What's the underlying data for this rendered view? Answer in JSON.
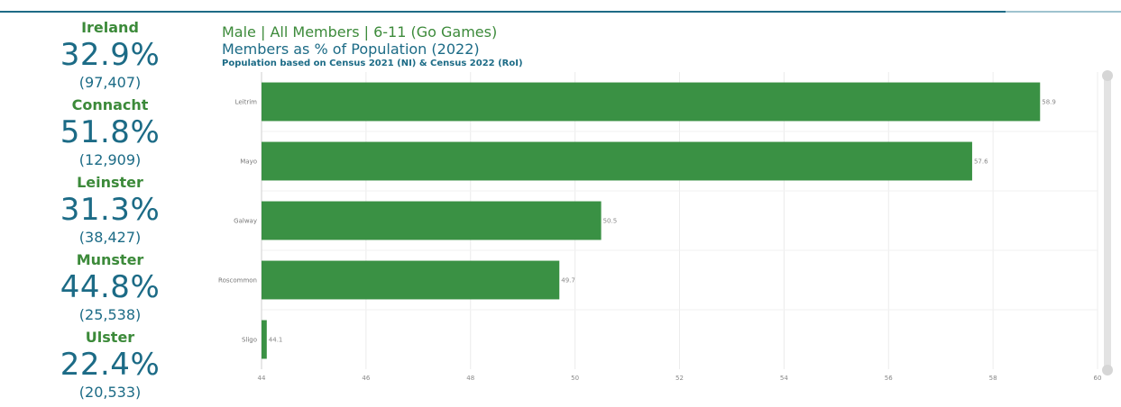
{
  "header": {
    "line1": "Male | All Members | 6-11 (Go Games)",
    "line2": "Members as % of Population (2022)",
    "line3": "Population based on Census 2021 (NI) & Census 2022 (RoI)"
  },
  "sidebar": {
    "stats": [
      {
        "name": "Ireland",
        "pct": "32.9%",
        "count": "(97,407)"
      },
      {
        "name": "Connacht",
        "pct": "51.8%",
        "count": "(12,909)"
      },
      {
        "name": "Leinster",
        "pct": "31.3%",
        "count": "(38,427)"
      },
      {
        "name": "Munster",
        "pct": "44.8%",
        "count": "(25,538)"
      },
      {
        "name": "Ulster",
        "pct": "22.4%",
        "count": "(20,533)"
      }
    ]
  },
  "colors": {
    "bar": "#3a9144",
    "green_text": "#3c8a3a",
    "blue_text": "#1c6b86"
  },
  "chart_data": {
    "type": "bar",
    "orientation": "horizontal",
    "categories": [
      "Leitrim",
      "Mayo",
      "Galway",
      "Roscommon",
      "Sligo"
    ],
    "values": [
      58.9,
      57.6,
      50.5,
      49.7,
      44.1
    ],
    "data_labels": [
      "58.9",
      "57.6",
      "50.5",
      "49.7",
      "44.1"
    ],
    "xlim": [
      44,
      60
    ],
    "xticks": [
      "44",
      "46",
      "48",
      "50",
      "52",
      "54",
      "56",
      "58",
      "60"
    ],
    "grid": true
  }
}
